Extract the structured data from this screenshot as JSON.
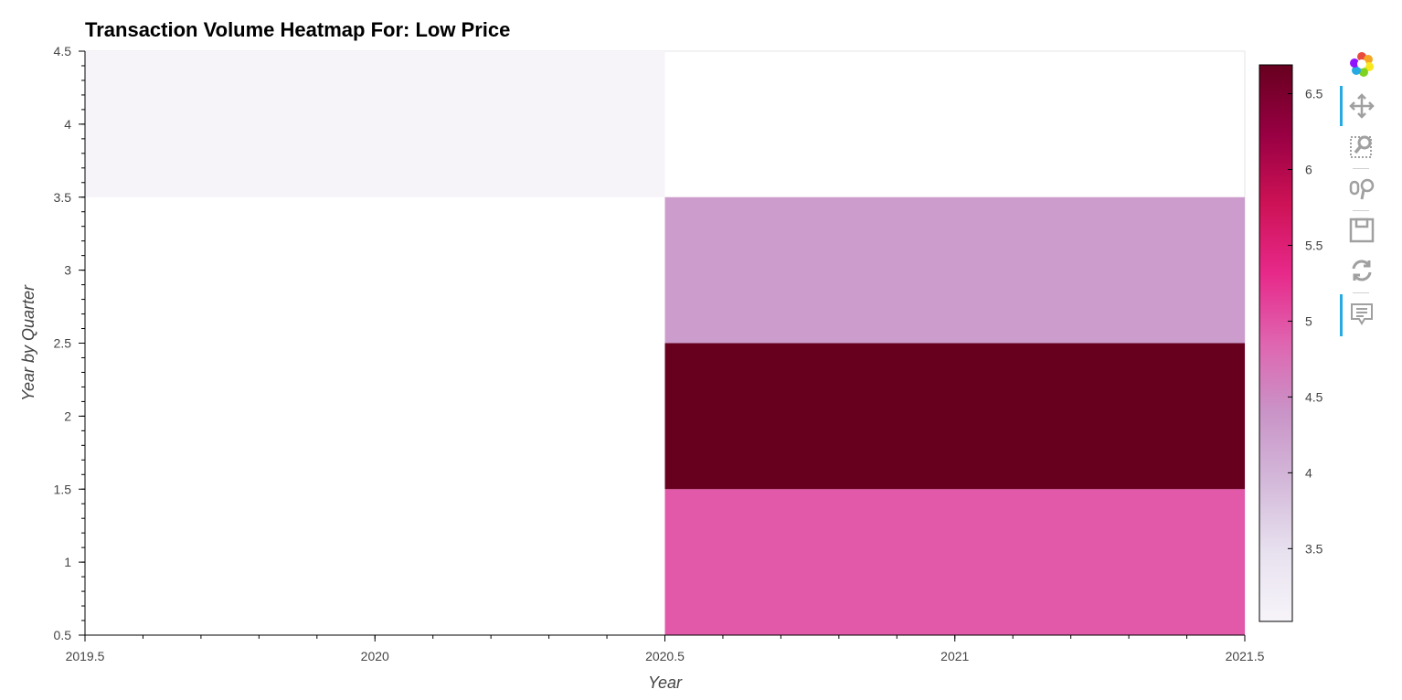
{
  "chart_data": {
    "type": "heatmap",
    "title": "Transaction Volume Heatmap For: Low Price",
    "xlabel": "Year",
    "ylabel": "Year by Quarter",
    "xlim": [
      2019.5,
      2021.5
    ],
    "ylim": [
      0.5,
      4.5
    ],
    "x_ticks": [
      2019.5,
      2020,
      2020.5,
      2021,
      2021.5
    ],
    "x_tick_labels": [
      "2019.5",
      "2020",
      "2020.5",
      "2021",
      "2021.5"
    ],
    "y_ticks": [
      0.5,
      1,
      1.5,
      2,
      2.5,
      3,
      3.5,
      4,
      4.5
    ],
    "y_tick_labels": [
      "0.5",
      "1",
      "1.5",
      "2",
      "2.5",
      "3",
      "3.5",
      "4",
      "4.5"
    ],
    "cells": [
      {
        "x": 2020,
        "y": 4,
        "value": 3.02
      },
      {
        "x": 2021,
        "y": 1,
        "value": 4.95
      },
      {
        "x": 2021,
        "y": 2,
        "value": 6.69
      },
      {
        "x": 2021,
        "y": 3,
        "value": 4.28
      }
    ],
    "colorbar": {
      "min": 3.02,
      "max": 6.69,
      "ticks": [
        3.5,
        4,
        4.5,
        5,
        5.5,
        6,
        6.5
      ],
      "tick_labels": [
        "3.5",
        "4",
        "4.5",
        "5",
        "5.5",
        "6",
        "6.5"
      ],
      "colormap": "PuRd",
      "colors": [
        "#f7f4f9",
        "#e7e1ef",
        "#d4b9da",
        "#c994c7",
        "#df65b0",
        "#e7298a",
        "#ce1256",
        "#980043",
        "#67001f"
      ]
    },
    "grid": false
  },
  "toolbar": {
    "tools": [
      {
        "name": "bokeh-logo-icon",
        "active": false
      },
      {
        "name": "pan-icon",
        "active": true
      },
      {
        "name": "box-zoom-icon",
        "active": false
      },
      {
        "name": "wheel-zoom-icon",
        "active": false
      },
      {
        "name": "save-icon",
        "active": false
      },
      {
        "name": "reset-icon",
        "active": false
      },
      {
        "name": "hover-icon",
        "active": true
      }
    ]
  }
}
